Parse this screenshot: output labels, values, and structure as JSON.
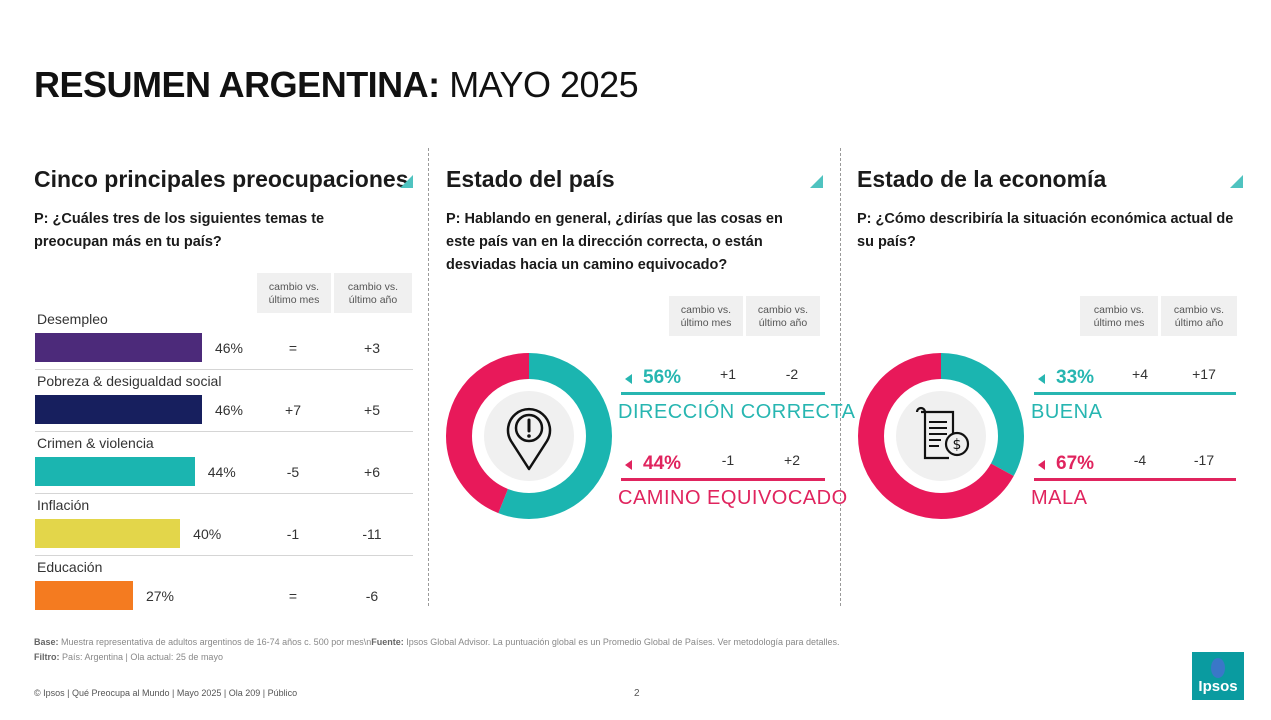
{
  "title": {
    "bold": "RESUMEN ARGENTINA:",
    "light": "MAYO 2025"
  },
  "colors": {
    "teal": "#1bb5b0",
    "pink": "#e8195a",
    "teal_label": "#27b6b1",
    "pink_label": "#e0245e",
    "accent": "#4fc3c0"
  },
  "change_headers": {
    "month": [
      "cambio vs.",
      "último mes"
    ],
    "year": [
      "cambio vs.",
      "último año"
    ]
  },
  "preocupaciones": {
    "title": "Cinco principales preocupaciones",
    "question": "P: ¿Cuáles tres de los siguientes temas te preocupan más en tu país?"
  },
  "estado_pais": {
    "title": "Estado del país",
    "question": "P: Hablando en general, ¿dirías que las cosas en este país van en la dirección correcta, o están desviadas hacia un camino equivocado?"
  },
  "estado_economia": {
    "title": "Estado de la economía",
    "question": "P: ¿Cómo describiría la situación económica actual de su país?"
  },
  "chart_data": [
    {
      "type": "bar",
      "categories": [
        "Desempleo",
        "Pobreza & desigualdad social",
        "Crimen & violencia",
        "Inflación",
        "Educación"
      ],
      "values": [
        46,
        46,
        44,
        40,
        27
      ],
      "value_labels": [
        "46%",
        "46%",
        "44%",
        "40%",
        "27%"
      ],
      "bar_colors": [
        "#4c2a7a",
        "#171f5e",
        "#1bb5b0",
        "#e3d64a",
        "#f47b20"
      ],
      "change_month": [
        "=",
        "+7",
        "-5",
        "-1",
        "="
      ],
      "change_year": [
        "+3",
        "+5",
        "+6",
        "-11",
        "-6"
      ]
    },
    {
      "type": "pie",
      "categories": [
        "DIRECCIÓN CORRECTA",
        "CAMINO EQUIVOCADO"
      ],
      "values": [
        56,
        44
      ],
      "value_labels": [
        "56%",
        "44%"
      ],
      "colors": [
        "#1bb5b0",
        "#e8195a"
      ],
      "change_month": [
        "+1",
        "-1"
      ],
      "change_year": [
        "-2",
        "+2"
      ]
    },
    {
      "type": "pie",
      "categories": [
        "BUENA",
        "MALA"
      ],
      "values": [
        33,
        67
      ],
      "value_labels": [
        "33%",
        "67%"
      ],
      "colors": [
        "#1bb5b0",
        "#e8195a"
      ],
      "change_month": [
        "+4",
        "-4"
      ],
      "change_year": [
        "+17",
        "-17"
      ]
    }
  ],
  "footnote": {
    "base_label": "Base:",
    "base_text": "Muestra representativa de adultos argentinos de 16-74 años  c. 500 por mes\\n",
    "fuente_label": "Fuente:",
    "fuente_text": "Ipsos Global Advisor. La puntuación global es un Promedio Global de Países. Ver metodología para detalles.",
    "filtro_label": "Filtro:",
    "filtro_text": "País: Argentina | Ola actual: 25 de mayo"
  },
  "footer": "© Ipsos | Qué Preocupa al Mundo | Mayo 2025 | Ola 209 | Público",
  "page_number": "2",
  "logo_text": "Ipsos",
  "icons": {
    "section_marker": "triangle-corner-icon",
    "pais": "location-alert-icon",
    "economia": "bill-dollar-icon",
    "arrow": "left-triangle-icon"
  }
}
